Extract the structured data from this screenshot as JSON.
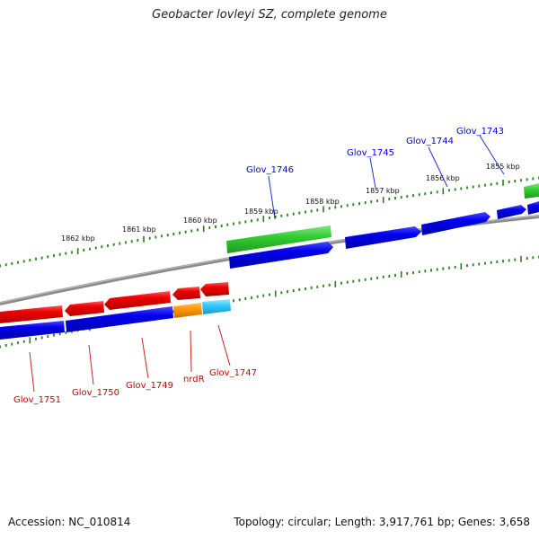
{
  "title": "Geobacter lovleyi SZ, complete genome",
  "footer": {
    "accession": "Accession: NC_010814",
    "summary": "Topology: circular; Length: 3,917,761 bp; Genes: 3,658"
  },
  "kbp_labels": [
    "1862 kbp",
    "1861 kbp",
    "1860 kbp",
    "1859 kbp",
    "1858 kbp",
    "1857 kbp",
    "1856 kbp",
    "1855 kbp"
  ],
  "genes_forward": [
    {
      "label": "Glov_1746",
      "color": "#0000cc"
    },
    {
      "label": "Glov_1745",
      "color": "#0000cc"
    },
    {
      "label": "Glov_1744",
      "color": "#0000cc"
    },
    {
      "label": "Glov_1743",
      "color": "#0000cc"
    }
  ],
  "genes_reverse": [
    {
      "label": "Glov_1751",
      "color": "#cc0000"
    },
    {
      "label": "Glov_1750",
      "color": "#cc0000"
    },
    {
      "label": "Glov_1749",
      "color": "#cc0000"
    },
    {
      "label": "nrdR",
      "color": "#cc0000"
    },
    {
      "label": "Glov_1747",
      "color": "#cc0000"
    }
  ],
  "colors": {
    "cds": "#0000ee",
    "gene_forward": "#33cc33",
    "gene_reverse": "#ee0000",
    "nrdR_feature": "#ff9900",
    "glov1747_feature": "#33ccff",
    "backbone": "#888888",
    "ticks": "#2e7d1e"
  }
}
